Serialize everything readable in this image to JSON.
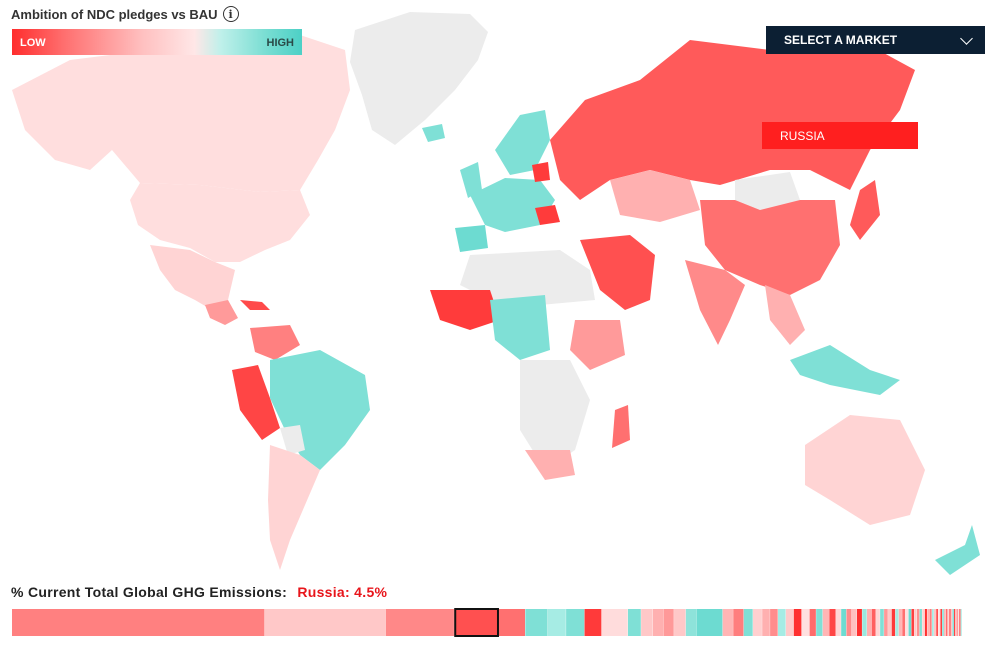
{
  "title": "Ambition of NDC pledges vs BAU",
  "info_icon": "info-icon",
  "legend": {
    "low_label": "LOW",
    "high_label": "HIGH"
  },
  "selector": {
    "label": "SELECT A MARKET"
  },
  "selected_market": "RUSSIA",
  "emissions": {
    "label": "% Current Total Global GHG Emissions:",
    "selected": "Russia: 4.5%",
    "segments": [
      {
        "share": 9.6,
        "color": "#ff8080"
      },
      {
        "share": 4.6,
        "color": "#ffc8c8"
      },
      {
        "share": 2.6,
        "color": "#ff8888"
      },
      {
        "share": 1.7,
        "color": "#ff5050",
        "selected": true
      },
      {
        "share": 1.0,
        "color": "#ff7070"
      },
      {
        "share": 0.85,
        "color": "#7fe0d6"
      },
      {
        "share": 0.7,
        "color": "#a6ece4"
      },
      {
        "share": 0.7,
        "color": "#7fe0d6"
      },
      {
        "share": 0.65,
        "color": "#ff3a3a"
      },
      {
        "share": 1.0,
        "color": "#ffdcdc"
      },
      {
        "share": 0.5,
        "color": "#7fe0d6"
      },
      {
        "share": 0.45,
        "color": "#ffc8c8"
      },
      {
        "share": 0.4,
        "color": "#ffb0b0"
      },
      {
        "share": 0.4,
        "color": "#ff9999"
      },
      {
        "share": 0.45,
        "color": "#ffc8c8"
      },
      {
        "share": 0.4,
        "color": "#8ee3da"
      },
      {
        "share": 1.0,
        "color": "#6ddbd1"
      },
      {
        "share": 0.4,
        "color": "#ffb5b5"
      },
      {
        "share": 0.4,
        "color": "#ff7e7e"
      },
      {
        "share": 0.35,
        "color": "#7fe0d6"
      },
      {
        "share": 0.35,
        "color": "#ffd0d0"
      },
      {
        "share": 0.3,
        "color": "#ffb0b0"
      },
      {
        "share": 0.3,
        "color": "#ff8d8d"
      },
      {
        "share": 0.3,
        "color": "#a6ece4"
      },
      {
        "share": 0.3,
        "color": "#ffcaca"
      },
      {
        "share": 0.3,
        "color": "#ff3030"
      },
      {
        "share": 0.3,
        "color": "#ffe0e0"
      },
      {
        "share": 0.25,
        "color": "#ff6b6b"
      },
      {
        "share": 0.25,
        "color": "#7fe0d6"
      },
      {
        "share": 0.25,
        "color": "#ffb5b5"
      },
      {
        "share": 0.25,
        "color": "#ff4646"
      },
      {
        "share": 0.2,
        "color": "#ffd6d6"
      },
      {
        "share": 0.2,
        "color": "#6ddbd1"
      },
      {
        "share": 0.2,
        "color": "#ff8a8a"
      },
      {
        "share": 0.2,
        "color": "#ffc0c0"
      },
      {
        "share": 0.2,
        "color": "#ff3030"
      },
      {
        "share": 0.18,
        "color": "#9ae8df"
      },
      {
        "share": 0.18,
        "color": "#ffb0b0"
      },
      {
        "share": 0.16,
        "color": "#ff6060"
      },
      {
        "share": 0.16,
        "color": "#ffd6d6"
      },
      {
        "share": 0.15,
        "color": "#7fe0d6"
      },
      {
        "share": 0.15,
        "color": "#ff9999"
      },
      {
        "share": 0.14,
        "color": "#ffc8c8"
      },
      {
        "share": 0.14,
        "color": "#ff3a3a"
      },
      {
        "share": 0.13,
        "color": "#a6ece4"
      },
      {
        "share": 0.13,
        "color": "#ffb5b5"
      },
      {
        "share": 0.12,
        "color": "#ff7070"
      },
      {
        "share": 0.12,
        "color": "#ffe0e0"
      },
      {
        "share": 0.11,
        "color": "#6ddbd1"
      },
      {
        "share": 0.11,
        "color": "#ff4040"
      },
      {
        "share": 0.1,
        "color": "#ffcaca"
      },
      {
        "share": 0.1,
        "color": "#ff9090"
      },
      {
        "share": 0.1,
        "color": "#7fe0d6"
      },
      {
        "share": 0.1,
        "color": "#ffd0d0"
      },
      {
        "share": 0.09,
        "color": "#ff3030"
      },
      {
        "share": 0.09,
        "color": "#ffb5b5"
      },
      {
        "share": 0.09,
        "color": "#ff8080"
      },
      {
        "share": 0.08,
        "color": "#a6ece4"
      },
      {
        "share": 0.08,
        "color": "#ffc0c0"
      },
      {
        "share": 0.08,
        "color": "#ff5050"
      },
      {
        "share": 0.08,
        "color": "#ffe0e0"
      },
      {
        "share": 0.07,
        "color": "#ff3a3a"
      },
      {
        "share": 0.07,
        "color": "#7fe0d6"
      },
      {
        "share": 0.07,
        "color": "#ffb0b0"
      },
      {
        "share": 0.07,
        "color": "#ff7070"
      },
      {
        "share": 0.06,
        "color": "#ffd6d6"
      },
      {
        "share": 0.06,
        "color": "#ff4040"
      },
      {
        "share": 0.06,
        "color": "#ffc8c8"
      },
      {
        "share": 0.06,
        "color": "#6ddbd1"
      },
      {
        "share": 0.05,
        "color": "#ff3030"
      },
      {
        "share": 0.05,
        "color": "#ffb5b5"
      },
      {
        "share": 0.05,
        "color": "#ff8080"
      },
      {
        "share": 0.05,
        "color": "#ffe0e0"
      },
      {
        "share": 0.05,
        "color": "#ff3a3a"
      },
      {
        "share": 0.05,
        "color": "#a6ece4"
      }
    ]
  },
  "palette": {
    "strong_low": "#ff3b3b",
    "low": "#ff5a5a",
    "mid_low": "#ff9a9a",
    "light_low": "#ffd4d4",
    "very_light_low": "#ffe4e4",
    "high": "#7fe0d6",
    "no_data": "#ececec"
  }
}
